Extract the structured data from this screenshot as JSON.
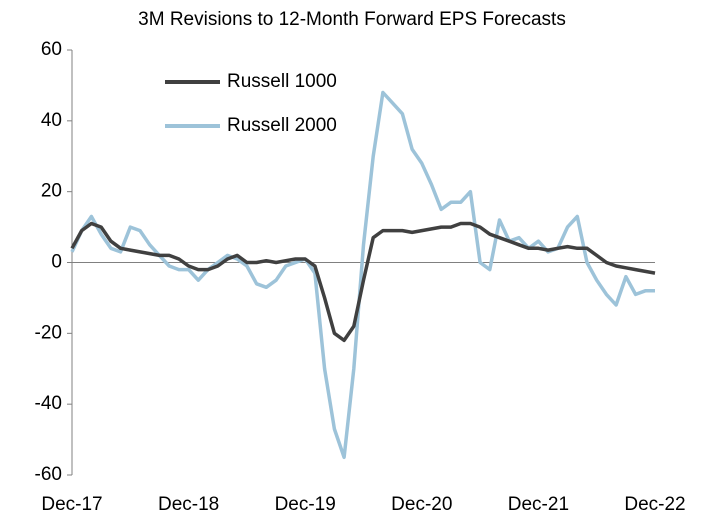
{
  "chart_data": {
    "type": "line",
    "title": "3M Revisions to 12-Month Forward EPS Forecasts",
    "categories": [
      "Dec-17",
      null,
      null,
      null,
      null,
      null,
      null,
      null,
      null,
      null,
      null,
      null,
      "Dec-18",
      null,
      null,
      null,
      null,
      null,
      null,
      null,
      null,
      null,
      null,
      null,
      "Dec-19",
      null,
      null,
      null,
      null,
      null,
      null,
      null,
      null,
      null,
      null,
      null,
      "Dec-20",
      null,
      null,
      null,
      null,
      null,
      null,
      null,
      null,
      null,
      null,
      null,
      "Dec-21",
      null,
      null,
      null,
      null,
      null,
      null,
      null,
      null,
      null,
      null,
      null,
      "Dec-22"
    ],
    "series": [
      {
        "name": "Russell 1000",
        "color": "#404040",
        "values": [
          4,
          9,
          11,
          10,
          6,
          4,
          3.5,
          3,
          2.5,
          2,
          2,
          1,
          -1,
          -2,
          -2,
          -1,
          1,
          2,
          0,
          0,
          0.5,
          0,
          0.5,
          1,
          1,
          -1,
          -10,
          -20,
          -22,
          -18,
          -5,
          7,
          9,
          9,
          9,
          8.5,
          9,
          9.5,
          10,
          10,
          11,
          11,
          10,
          8,
          7,
          6,
          5,
          4,
          4,
          3.5,
          4,
          4.5,
          4,
          4,
          2,
          0,
          -1,
          -1.5,
          -2,
          -2.5,
          -3
        ]
      },
      {
        "name": "Russell 2000",
        "color": "#9dc3d9",
        "values": [
          3,
          9,
          13,
          8,
          4,
          3,
          10,
          9,
          5,
          2,
          -1,
          -2,
          -2,
          -5,
          -2,
          0,
          2,
          1,
          -1,
          -6,
          -7,
          -5,
          -1,
          0,
          1,
          -3,
          -30,
          -47,
          -55,
          -30,
          5,
          30,
          48,
          45,
          42,
          32,
          28,
          22,
          15,
          17,
          17,
          20,
          0,
          -2,
          12,
          6,
          7,
          4,
          6,
          3,
          4,
          10,
          13,
          0,
          -5,
          -9,
          -12,
          -4,
          -9,
          -8,
          -8
        ]
      }
    ],
    "ylim": [
      -60,
      60
    ],
    "yticks": [
      -60,
      -40,
      -20,
      0,
      20,
      40,
      60
    ],
    "legend": "upper left"
  }
}
